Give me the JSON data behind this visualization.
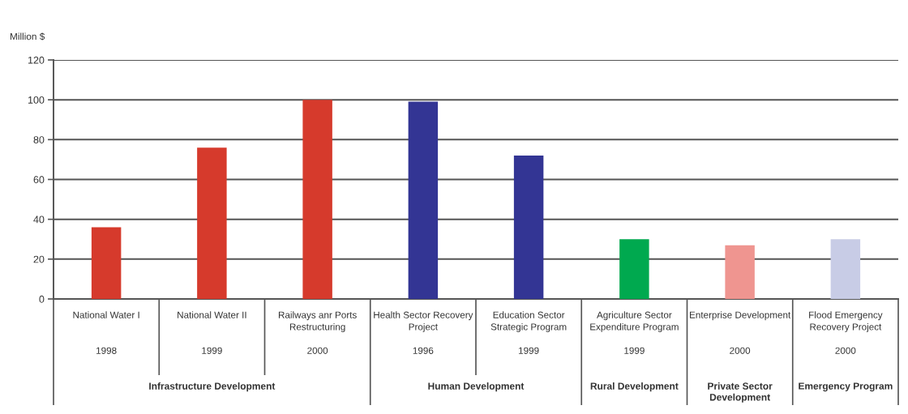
{
  "chart_data": {
    "type": "bar",
    "ylabel": "Million $",
    "categories": [
      "National Water I\n1998",
      "National Water II\n1999",
      "Railways anr Ports\nRestructuring\n2000",
      "Health Sector Recovery\nProject\n1996",
      "Education Sector\nStrategic Program\n1999",
      "Agriculture Sector\nExpenditure Program\n1999",
      "Enterprise Development\n2000",
      "Flood Emergency\nRecovery Project\n2000"
    ],
    "values": [
      36,
      76,
      100,
      99,
      72,
      30,
      27,
      30
    ],
    "colors": [
      "#d63a2c",
      "#d63a2c",
      "#d63a2c",
      "#333594",
      "#333594",
      "#00a94f",
      "#ef9590",
      "#c8cce6"
    ],
    "ylim": [
      0,
      120
    ],
    "yticks": [
      0,
      20,
      40,
      60,
      80,
      100,
      120
    ],
    "grid": "y",
    "annotations": [
      "Infrastructure Development",
      "Human Development",
      "Rural Development",
      "Private Sector\nDevelopment",
      "Emergency Program"
    ]
  }
}
